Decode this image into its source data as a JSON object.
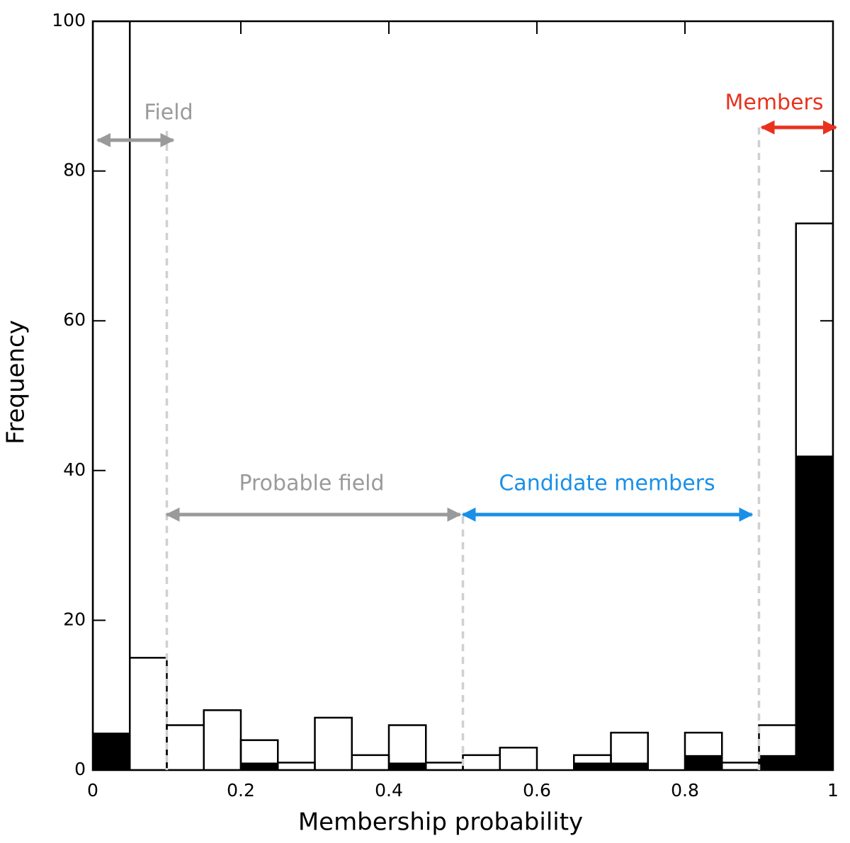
{
  "chart_data": {
    "type": "histogram",
    "xlabel": "Membership probability",
    "ylabel": "Frequency",
    "bins": [
      0,
      0.05,
      0.1,
      0.15,
      0.2,
      0.25,
      0.3,
      0.35,
      0.4,
      0.45,
      0.5,
      0.55,
      0.6,
      0.65,
      0.7,
      0.75,
      0.8,
      0.85,
      0.9,
      0.95,
      1
    ],
    "series": [
      {
        "filled": false,
        "color": "#000000",
        "values": [
          100,
          15,
          6,
          8,
          4,
          1,
          7,
          2,
          6,
          1,
          2,
          3,
          0,
          2,
          5,
          0,
          5,
          1,
          6,
          73
        ]
      },
      {
        "filled": true,
        "color": "#000000",
        "values": [
          5,
          0,
          0,
          0,
          1,
          0,
          0,
          0,
          1,
          0,
          0,
          0,
          0,
          1,
          1,
          0,
          2,
          0,
          2,
          42
        ]
      }
    ],
    "regions": [
      {
        "label": "Field",
        "from": 0,
        "to": 0.1,
        "color": "#9a9a9a"
      },
      {
        "label": "Probable field",
        "from": 0.1,
        "to": 0.5,
        "color": "#9a9a9a"
      },
      {
        "label": "Candidate members",
        "from": 0.5,
        "to": 0.9,
        "color": "#1a8fe8"
      },
      {
        "label": "Members",
        "from": 0.9,
        "to": 1,
        "color": "#e8321e"
      }
    ],
    "xlim": [
      0,
      1
    ],
    "ylim": [
      0,
      100
    ],
    "xticks": [
      0,
      0.2,
      0.4,
      0.6,
      0.8,
      1
    ],
    "yticks": [
      0,
      20,
      40,
      60,
      80,
      100
    ]
  }
}
